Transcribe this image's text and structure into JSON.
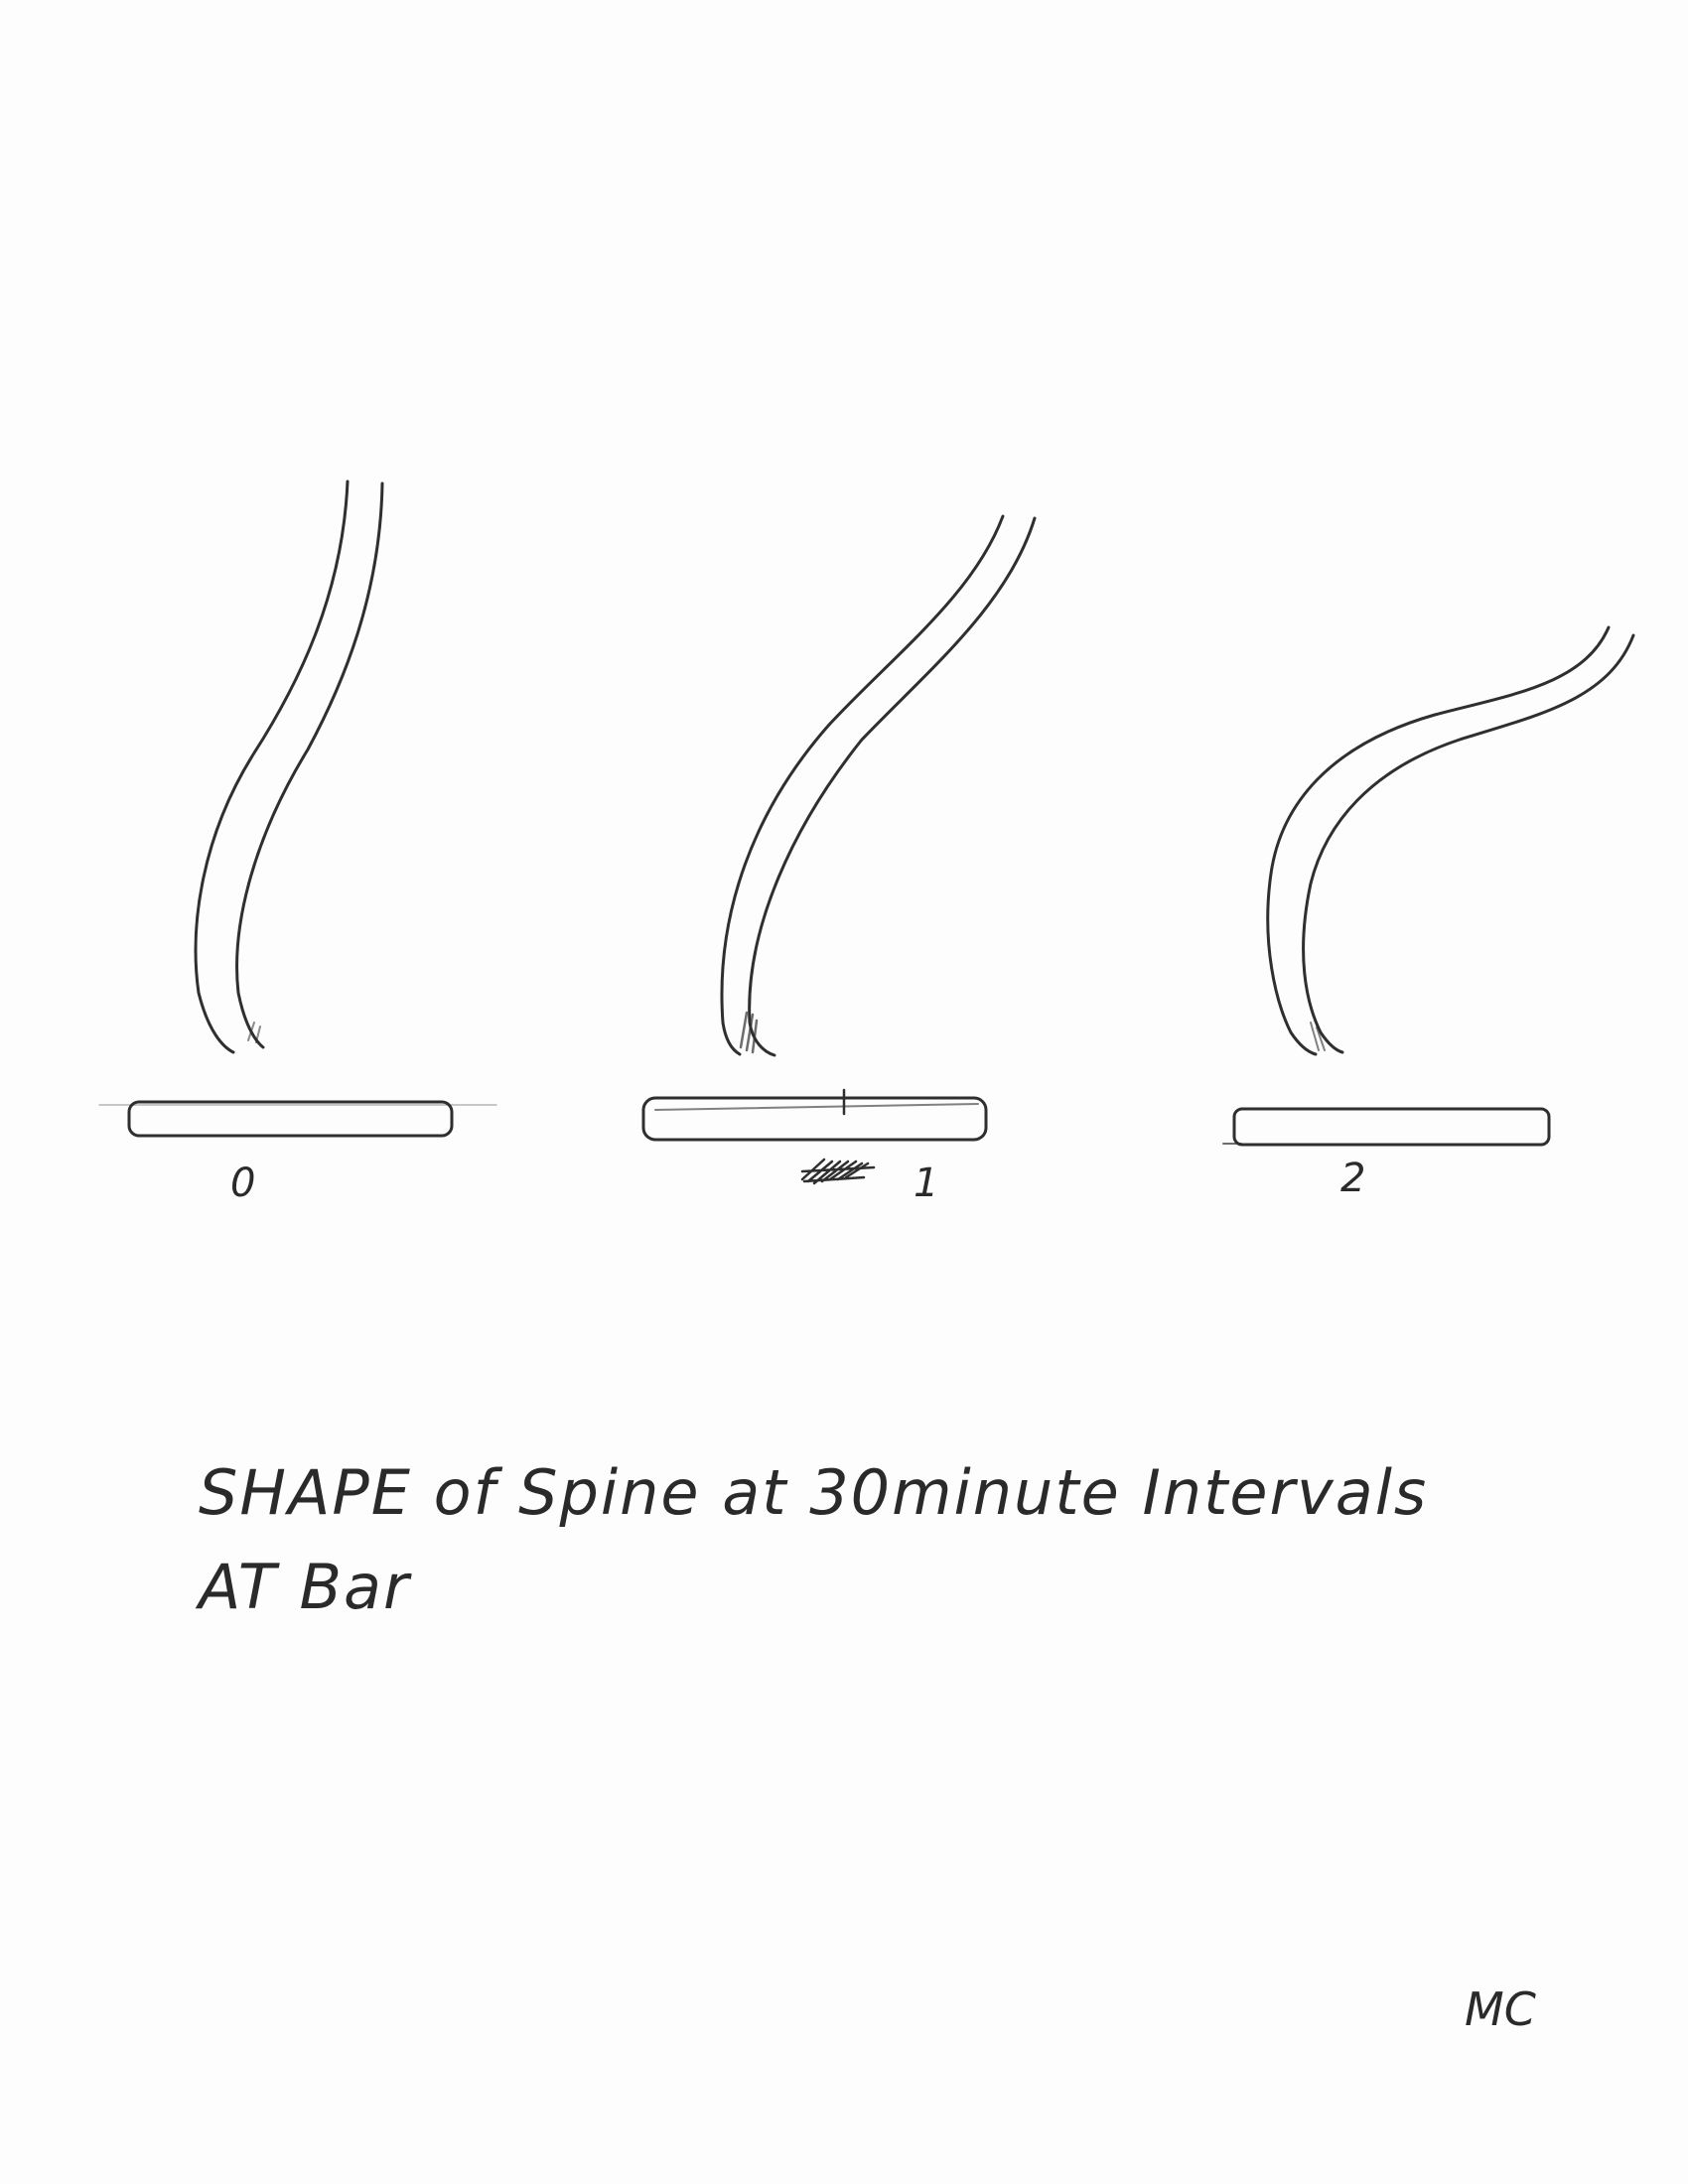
{
  "figures": [
    {
      "label": "0"
    },
    {
      "label": "1"
    },
    {
      "label": "2"
    }
  ],
  "caption": {
    "line1": "SHAPE of Spine at 30minute Intervals",
    "line2": "AT Bar"
  },
  "signature": "MC"
}
